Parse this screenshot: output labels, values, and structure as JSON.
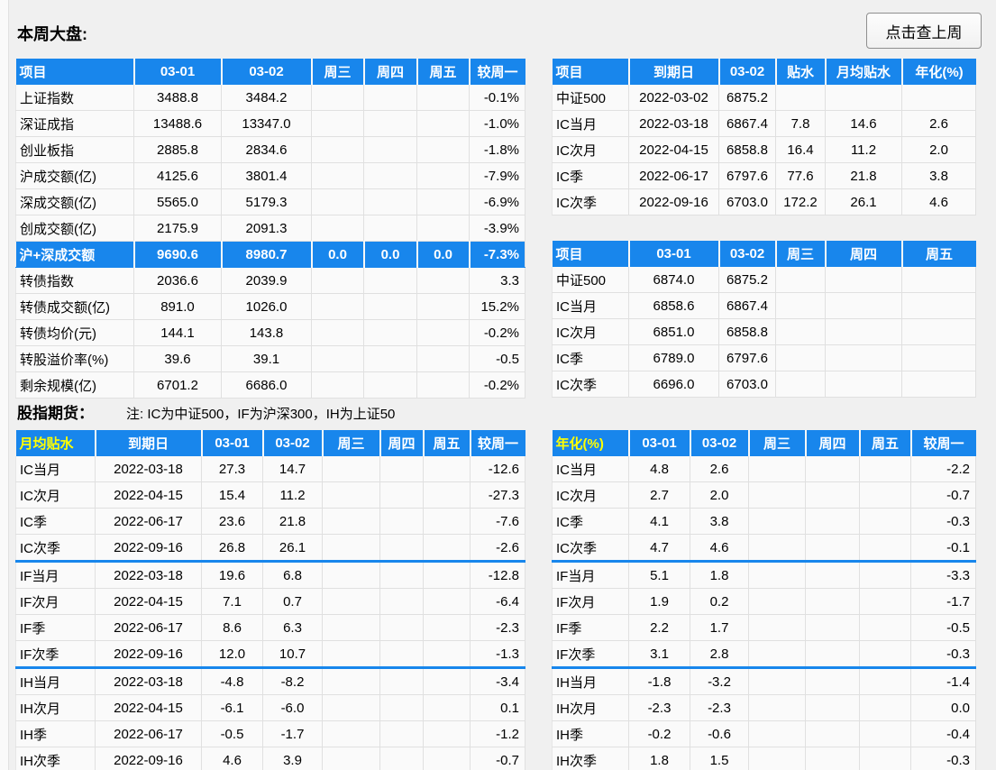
{
  "header": {
    "title": "本周大盘:",
    "last_week_button_label": "点击查上周"
  },
  "futures_section": {
    "title": "股指期货：",
    "note": "注: IC为中证500，IF为沪深300，IH为上证50"
  },
  "colors": {
    "header_blue": "#1886EC",
    "header_text_white": "#FFFFFF",
    "header_text_yellow": "#FFFF00",
    "highlight_row_blue": "#1886EC",
    "group_separator_blue": "#1886EC"
  },
  "market_table": {
    "headers": [
      "项目",
      "03-01",
      "03-02",
      "周三",
      "周四",
      "周五",
      "较周一"
    ],
    "rows": [
      {
        "cells": [
          "上证指数",
          "3488.8",
          "3484.2",
          "",
          "",
          "",
          "-0.1%"
        ]
      },
      {
        "cells": [
          "深证成指",
          "13488.6",
          "13347.0",
          "",
          "",
          "",
          "-1.0%"
        ]
      },
      {
        "cells": [
          "创业板指",
          "2885.8",
          "2834.6",
          "",
          "",
          "",
          "-1.8%"
        ]
      },
      {
        "cells": [
          "沪成交额(亿)",
          "4125.6",
          "3801.4",
          "",
          "",
          "",
          "-7.9%"
        ]
      },
      {
        "cells": [
          "深成交额(亿)",
          "5565.0",
          "5179.3",
          "",
          "",
          "",
          "-6.9%"
        ]
      },
      {
        "cells": [
          "创成交额(亿)",
          "2175.9",
          "2091.3",
          "",
          "",
          "",
          "-3.9%"
        ]
      },
      {
        "cells": [
          "沪+深成交额",
          "9690.6",
          "8980.7",
          "0.0",
          "0.0",
          "0.0",
          "-7.3%"
        ],
        "highlight": true
      },
      {
        "cells": [
          "转债指数",
          "2036.6",
          "2039.9",
          "",
          "",
          "",
          "3.3"
        ]
      },
      {
        "cells": [
          "转债成交额(亿)",
          "891.0",
          "1026.0",
          "",
          "",
          "",
          "15.2%"
        ]
      },
      {
        "cells": [
          "转债均价(元)",
          "144.1",
          "143.8",
          "",
          "",
          "",
          "-0.2%"
        ]
      },
      {
        "cells": [
          "转股溢价率(%)",
          "39.6",
          "39.1",
          "",
          "",
          "",
          "-0.5"
        ]
      },
      {
        "cells": [
          "剩余规模(亿)",
          "6701.2",
          "6686.0",
          "",
          "",
          "",
          "-0.2%"
        ]
      }
    ]
  },
  "index_futures_detail_table": {
    "headers": [
      "项目",
      "到期日",
      "03-02",
      "贴水",
      "月均贴水",
      "年化(%)"
    ],
    "rows": [
      {
        "cells": [
          "中证500",
          "2022-03-02",
          "6875.2",
          "",
          "",
          ""
        ]
      },
      {
        "cells": [
          "IC当月",
          "2022-03-18",
          "6867.4",
          "7.8",
          "14.6",
          "2.6"
        ]
      },
      {
        "cells": [
          "IC次月",
          "2022-04-15",
          "6858.8",
          "16.4",
          "11.2",
          "2.0"
        ]
      },
      {
        "cells": [
          "IC季",
          "2022-06-17",
          "6797.6",
          "77.6",
          "21.8",
          "3.8"
        ]
      },
      {
        "cells": [
          "IC次季",
          "2022-09-16",
          "6703.0",
          "172.2",
          "26.1",
          "4.6"
        ]
      }
    ]
  },
  "index_futures_price_table": {
    "headers": [
      "项目",
      "03-01",
      "03-02",
      "周三",
      "周四",
      "周五"
    ],
    "rows": [
      {
        "cells": [
          "中证500",
          "6874.0",
          "6875.2",
          "",
          "",
          ""
        ]
      },
      {
        "cells": [
          "IC当月",
          "6858.6",
          "6867.4",
          "",
          "",
          ""
        ]
      },
      {
        "cells": [
          "IC次月",
          "6851.0",
          "6858.8",
          "",
          "",
          ""
        ]
      },
      {
        "cells": [
          "IC季",
          "6789.0",
          "6797.6",
          "",
          "",
          ""
        ]
      },
      {
        "cells": [
          "IC次季",
          "6696.0",
          "6703.0",
          "",
          "",
          ""
        ]
      }
    ]
  },
  "monthly_basis_table": {
    "headers": [
      "月均贴水",
      "到期日",
      "03-01",
      "03-02",
      "周三",
      "周四",
      "周五",
      "较周一"
    ],
    "rows": [
      {
        "cells": [
          "IC当月",
          "2022-03-18",
          "27.3",
          "14.7",
          "",
          "",
          "",
          "-12.6"
        ]
      },
      {
        "cells": [
          "IC次月",
          "2022-04-15",
          "15.4",
          "11.2",
          "",
          "",
          "",
          "-27.3"
        ]
      },
      {
        "cells": [
          "IC季",
          "2022-06-17",
          "23.6",
          "21.8",
          "",
          "",
          "",
          "-7.6"
        ]
      },
      {
        "cells": [
          "IC次季",
          "2022-09-16",
          "26.8",
          "26.1",
          "",
          "",
          "",
          "-2.6"
        ],
        "sep_after": true
      },
      {
        "cells": [
          "IF当月",
          "2022-03-18",
          "19.6",
          "6.8",
          "",
          "",
          "",
          "-12.8"
        ]
      },
      {
        "cells": [
          "IF次月",
          "2022-04-15",
          "7.1",
          "0.7",
          "",
          "",
          "",
          "-6.4"
        ]
      },
      {
        "cells": [
          "IF季",
          "2022-06-17",
          "8.6",
          "6.3",
          "",
          "",
          "",
          "-2.3"
        ]
      },
      {
        "cells": [
          "IF次季",
          "2022-09-16",
          "12.0",
          "10.7",
          "",
          "",
          "",
          "-1.3"
        ],
        "sep_after": true
      },
      {
        "cells": [
          "IH当月",
          "2022-03-18",
          "-4.8",
          "-8.2",
          "",
          "",
          "",
          "-3.4"
        ]
      },
      {
        "cells": [
          "IH次月",
          "2022-04-15",
          "-6.1",
          "-6.0",
          "",
          "",
          "",
          "0.1"
        ]
      },
      {
        "cells": [
          "IH季",
          "2022-06-17",
          "-0.5",
          "-1.7",
          "",
          "",
          "",
          "-1.2"
        ]
      },
      {
        "cells": [
          "IH次季",
          "2022-09-16",
          "4.6",
          "3.9",
          "",
          "",
          "",
          "-0.7"
        ],
        "sep_after": true
      }
    ]
  },
  "annualized_table": {
    "headers": [
      "年化(%)",
      "03-01",
      "03-02",
      "周三",
      "周四",
      "周五",
      "较周一"
    ],
    "rows": [
      {
        "cells": [
          "IC当月",
          "4.8",
          "2.6",
          "",
          "",
          "",
          "-2.2"
        ]
      },
      {
        "cells": [
          "IC次月",
          "2.7",
          "2.0",
          "",
          "",
          "",
          "-0.7"
        ]
      },
      {
        "cells": [
          "IC季",
          "4.1",
          "3.8",
          "",
          "",
          "",
          "-0.3"
        ]
      },
      {
        "cells": [
          "IC次季",
          "4.7",
          "4.6",
          "",
          "",
          "",
          "-0.1"
        ],
        "sep_after": true
      },
      {
        "cells": [
          "IF当月",
          "5.1",
          "1.8",
          "",
          "",
          "",
          "-3.3"
        ]
      },
      {
        "cells": [
          "IF次月",
          "1.9",
          "0.2",
          "",
          "",
          "",
          "-1.7"
        ]
      },
      {
        "cells": [
          "IF季",
          "2.2",
          "1.7",
          "",
          "",
          "",
          "-0.5"
        ]
      },
      {
        "cells": [
          "IF次季",
          "3.1",
          "2.8",
          "",
          "",
          "",
          "-0.3"
        ],
        "sep_after": true
      },
      {
        "cells": [
          "IH当月",
          "-1.8",
          "-3.2",
          "",
          "",
          "",
          "-1.4"
        ]
      },
      {
        "cells": [
          "IH次月",
          "-2.3",
          "-2.3",
          "",
          "",
          "",
          "0.0"
        ]
      },
      {
        "cells": [
          "IH季",
          "-0.2",
          "-0.6",
          "",
          "",
          "",
          "-0.4"
        ]
      },
      {
        "cells": [
          "IH次季",
          "1.8",
          "1.5",
          "",
          "",
          "",
          "-0.3"
        ]
      }
    ]
  }
}
